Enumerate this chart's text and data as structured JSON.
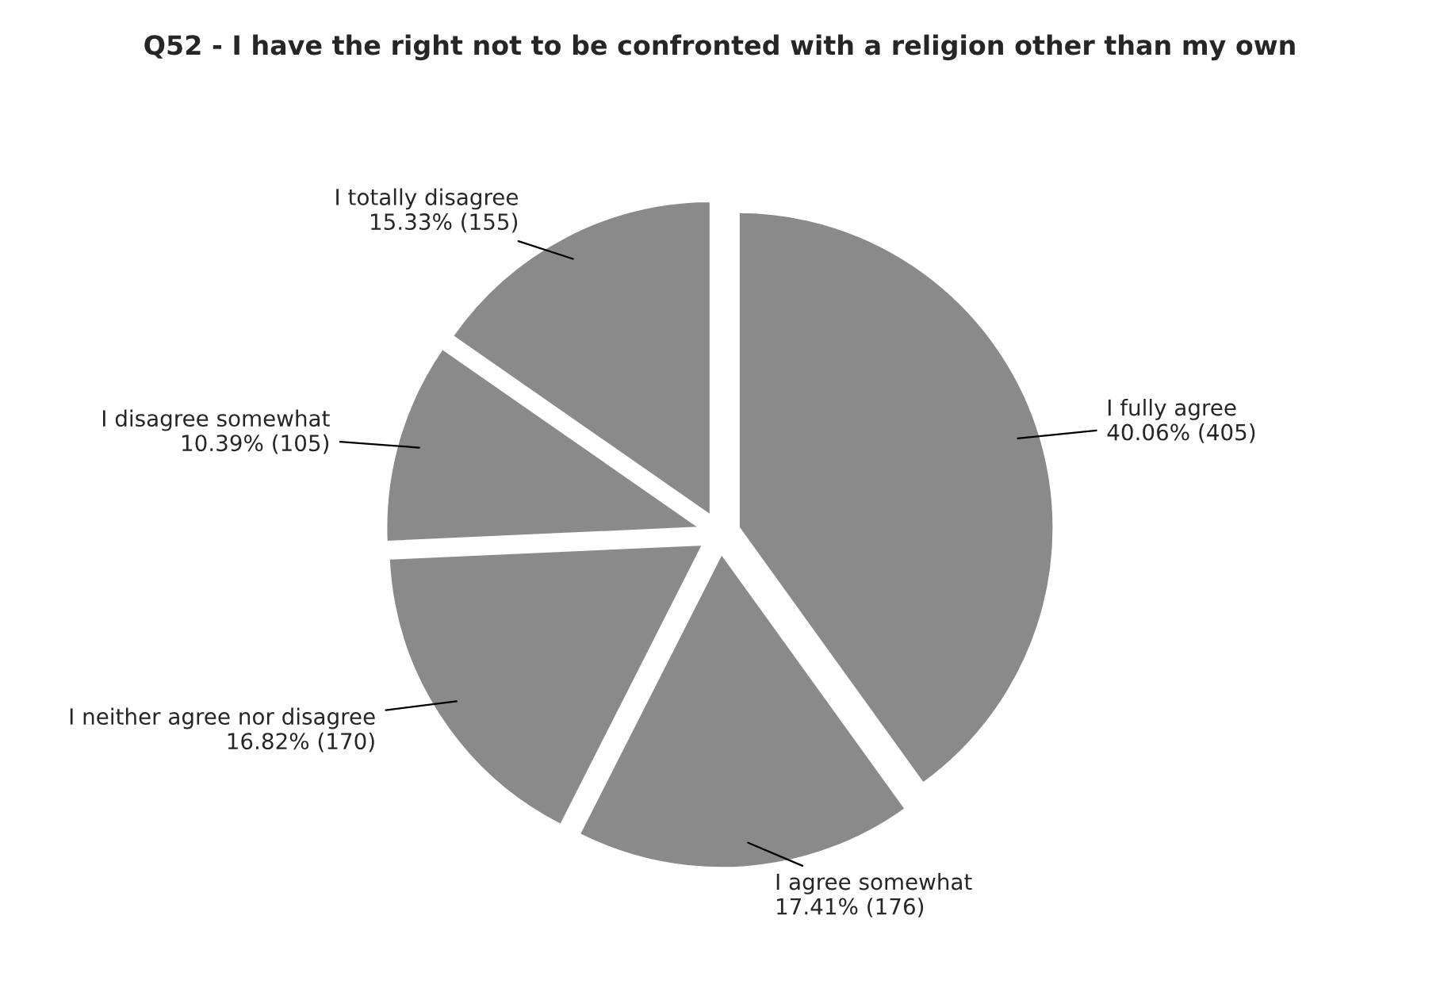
{
  "chart_data": {
    "type": "pie",
    "title": "Q52 - I have the right not to be confronted with a religion other than my own",
    "categories": [
      "I fully agree",
      "I agree somewhat",
      "I neither agree nor disagree",
      "I disagree somewhat",
      "I totally disagree"
    ],
    "values": [
      405,
      176,
      170,
      105,
      155
    ],
    "value_labels": [
      "40.06% (405)",
      "17.41% (176)",
      "16.82% (170)",
      "10.39% (105)",
      "15.33% (155)"
    ],
    "colors": [
      "#8a8a8a",
      "#8a8a8a",
      "#8a8a8a",
      "#8a8a8a",
      "#8a8a8a"
    ]
  }
}
